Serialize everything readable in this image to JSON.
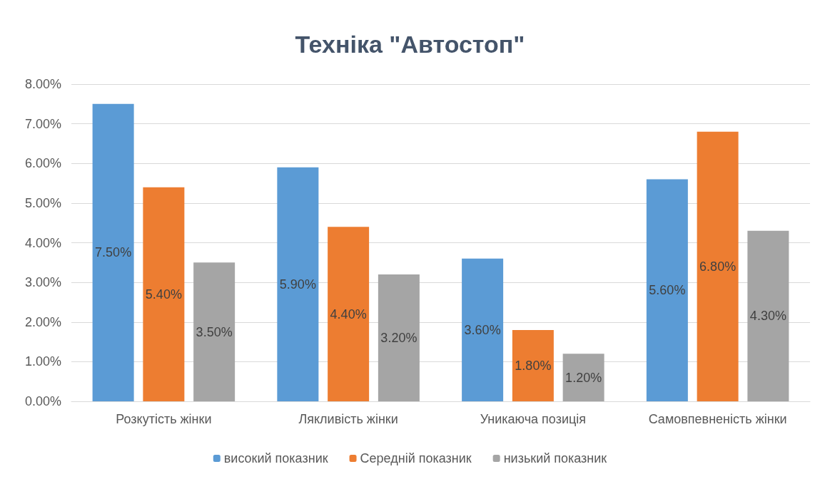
{
  "chart_data": {
    "type": "bar",
    "title": "Техніка \"Автостоп\"",
    "categories": [
      "Розкутість жінки",
      "Лякливість жінки",
      "Уникаюча позиція",
      "Самовпевненість жінки"
    ],
    "series": [
      {
        "name": "високий показник",
        "color": "#5b9bd5",
        "values": [
          7.5,
          5.9,
          3.6,
          5.6
        ],
        "value_labels": [
          "7.50%",
          "5.90%",
          "3.60%",
          "5.60%"
        ]
      },
      {
        "name": "Середній показник",
        "color": "#ed7d31",
        "values": [
          5.4,
          4.4,
          1.8,
          6.8
        ],
        "value_labels": [
          "5.40%",
          "4.40%",
          "1.80%",
          "6.80%"
        ]
      },
      {
        "name": "низький показник",
        "color": "#a5a5a5",
        "values": [
          3.5,
          3.2,
          1.2,
          4.3
        ],
        "value_labels": [
          "3.50%",
          "3.20%",
          "1.20%",
          "4.30%"
        ]
      }
    ],
    "ylim": [
      0,
      8
    ],
    "yticks": [
      {
        "value": 0,
        "label": "0.00%"
      },
      {
        "value": 1,
        "label": "1.00%"
      },
      {
        "value": 2,
        "label": "2.00%"
      },
      {
        "value": 3,
        "label": "3.00%"
      },
      {
        "value": 4,
        "label": "4.00%"
      },
      {
        "value": 5,
        "label": "5.00%"
      },
      {
        "value": 6,
        "label": "6.00%"
      },
      {
        "value": 7,
        "label": "7.00%"
      },
      {
        "value": 8,
        "label": "8.00%"
      }
    ],
    "grid": "y",
    "legend": "bottom"
  }
}
